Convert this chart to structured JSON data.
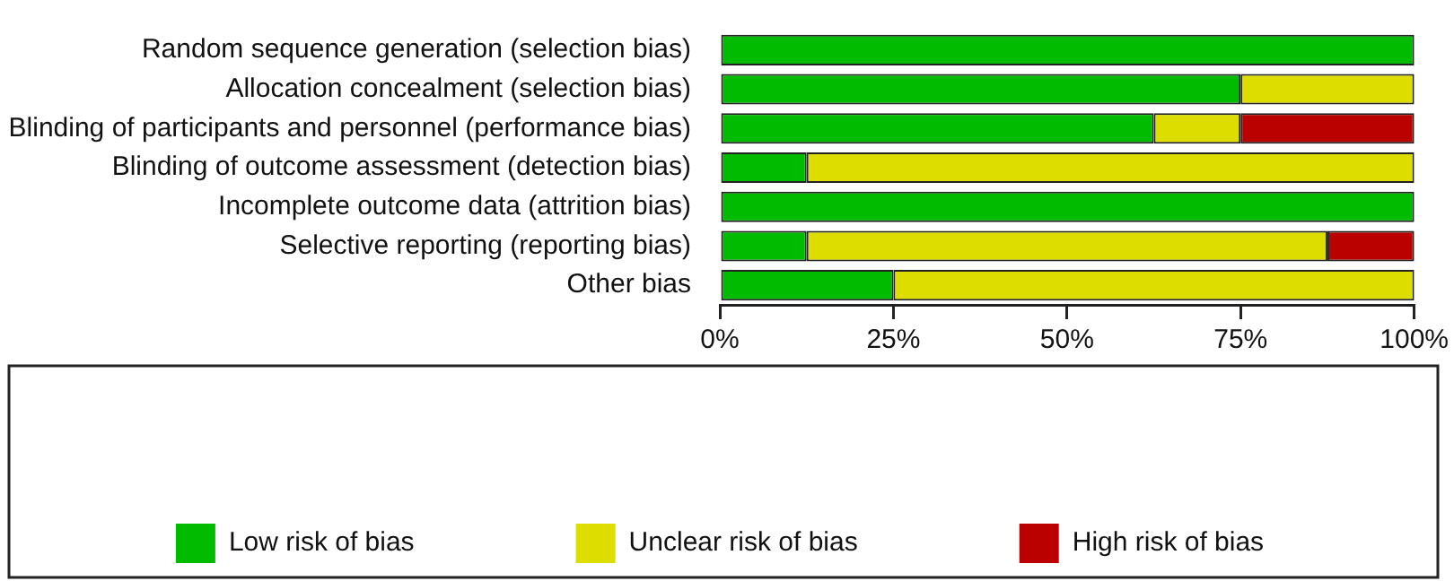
{
  "chart_data": {
    "type": "bar",
    "orientation": "horizontal",
    "stacked": true,
    "categories": [
      "Random sequence generation (selection bias)",
      "Allocation concealment (selection bias)",
      "Blinding of participants and personnel (performance bias)",
      "Blinding of outcome assessment (detection bias)",
      "Incomplete outcome data (attrition bias)",
      "Selective reporting (reporting bias)",
      "Other bias"
    ],
    "series": [
      {
        "name": "Low risk of bias",
        "color": "#00bb00",
        "values": [
          100,
          75,
          62.5,
          12.5,
          100,
          12.5,
          25
        ]
      },
      {
        "name": "Unclear risk of bias",
        "color": "#dddd00",
        "values": [
          0,
          25,
          12.5,
          87.5,
          0,
          75,
          75
        ]
      },
      {
        "name": "High risk of bias",
        "color": "#bb0000",
        "values": [
          0,
          0,
          25,
          0,
          0,
          12.5,
          0
        ]
      }
    ],
    "xlim": [
      0,
      100
    ],
    "xticks": [
      {
        "value": 0,
        "label": "0%"
      },
      {
        "value": 25,
        "label": "25%"
      },
      {
        "value": 50,
        "label": "50%"
      },
      {
        "value": 75,
        "label": "75%"
      },
      {
        "value": 100,
        "label": "100%"
      }
    ],
    "grid": false,
    "legend": "bottom"
  }
}
